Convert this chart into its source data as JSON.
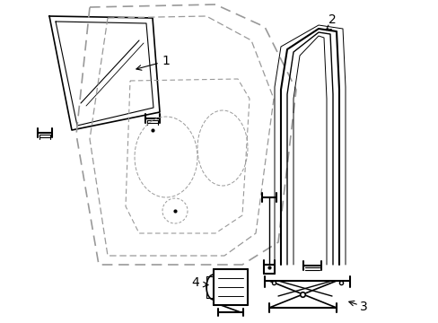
{
  "background_color": "#ffffff",
  "line_color": "#000000",
  "dashed_color": "#999999",
  "label_color": "#000000"
}
